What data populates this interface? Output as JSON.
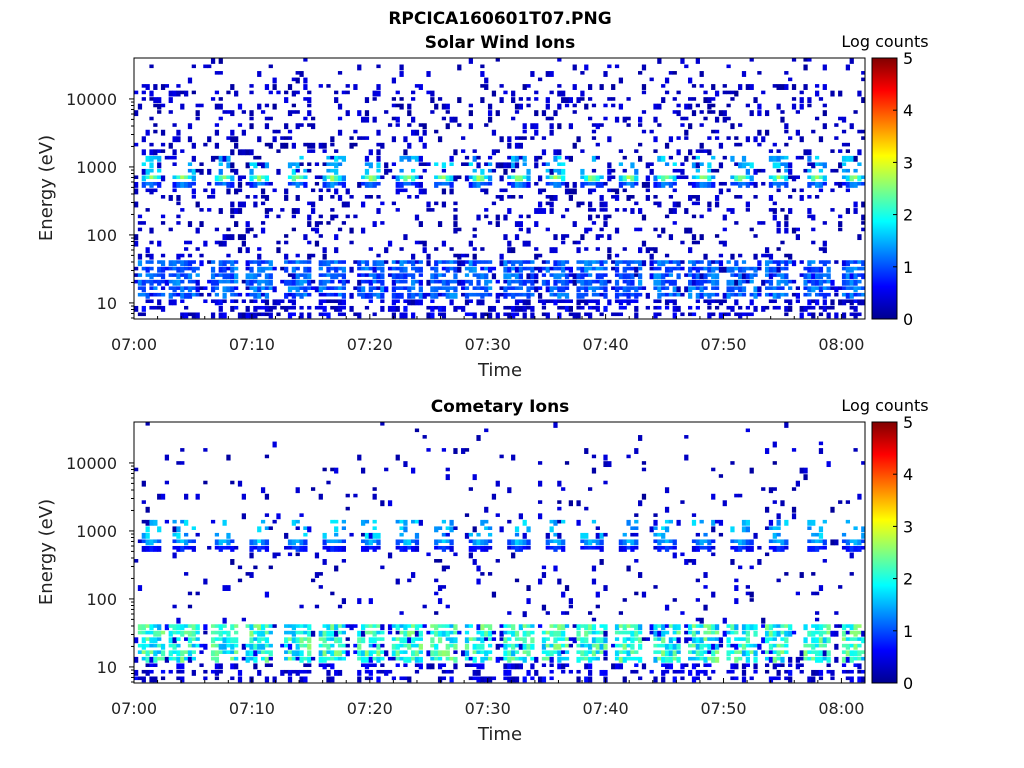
{
  "figure_title": "RPCICA160601T07.PNG",
  "colors": {
    "colormap": [
      "#00008f",
      "#0000ff",
      "#0080ff",
      "#00ffff",
      "#80ff80",
      "#ffff00",
      "#ff8000",
      "#ff0000",
      "#800000"
    ],
    "axis": "#000000"
  },
  "chart_data": [
    {
      "type": "heatmap",
      "title": "Solar Wind Ions",
      "xlabel": "Time",
      "ylabel": "Energy (eV)",
      "x_ticks": [
        "07:00",
        "07:10",
        "07:20",
        "07:30",
        "07:40",
        "07:50",
        "08:00"
      ],
      "x_tick_values_min": [
        0,
        10,
        20,
        30,
        40,
        50,
        60
      ],
      "xlim_min": [
        0,
        62
      ],
      "y_scale": "log",
      "y_ticks": [
        "10",
        "100",
        "1000",
        "10000"
      ],
      "y_tick_values": [
        10,
        100,
        1000,
        10000
      ],
      "ylim": [
        5.8,
        40000
      ],
      "colorbar": {
        "label": "Log counts",
        "min": 0,
        "max": 5,
        "ticks": [
          "0",
          "1",
          "2",
          "3",
          "4",
          "5"
        ]
      },
      "features": {
        "sweep_centers_min": [
          1.5,
          4.2,
          7.6,
          10.6,
          13.8,
          16.9,
          20.1,
          23.2,
          26.2,
          29.3,
          32.6,
          35.8,
          38.8,
          42.0,
          45.1,
          48.3,
          51.5,
          54.7,
          57.9,
          61.1
        ],
        "peak_energy_eV": 650,
        "peak_log_counts": 2.9,
        "low_energy_band_eV": [
          12,
          40
        ],
        "low_energy_log_counts": 1.4,
        "noise_density": 0.42
      }
    },
    {
      "type": "heatmap",
      "title": "Cometary Ions",
      "xlabel": "Time",
      "ylabel": "Energy (eV)",
      "x_ticks": [
        "07:00",
        "07:10",
        "07:20",
        "07:30",
        "07:40",
        "07:50",
        "08:00"
      ],
      "x_tick_values_min": [
        0,
        10,
        20,
        30,
        40,
        50,
        60
      ],
      "xlim_min": [
        0,
        62
      ],
      "y_scale": "log",
      "y_ticks": [
        "10",
        "100",
        "1000",
        "10000"
      ],
      "y_tick_values": [
        10,
        100,
        1000,
        10000
      ],
      "ylim": [
        5.8,
        40000
      ],
      "colorbar": {
        "label": "Log counts",
        "min": 0,
        "max": 5,
        "ticks": [
          "0",
          "1",
          "2",
          "3",
          "4",
          "5"
        ]
      },
      "features": {
        "sweep_centers_min": [
          1.5,
          4.2,
          7.6,
          10.6,
          13.8,
          16.9,
          20.1,
          23.2,
          26.2,
          29.3,
          32.6,
          35.8,
          38.8,
          42.0,
          45.1,
          48.3,
          51.5,
          54.7,
          57.9,
          61.1
        ],
        "peak_energy_eV": 650,
        "peak_log_counts": 1.7,
        "low_energy_band_eV": [
          12,
          40
        ],
        "low_energy_log_counts": 2.6,
        "noise_density": 0.12
      }
    }
  ]
}
